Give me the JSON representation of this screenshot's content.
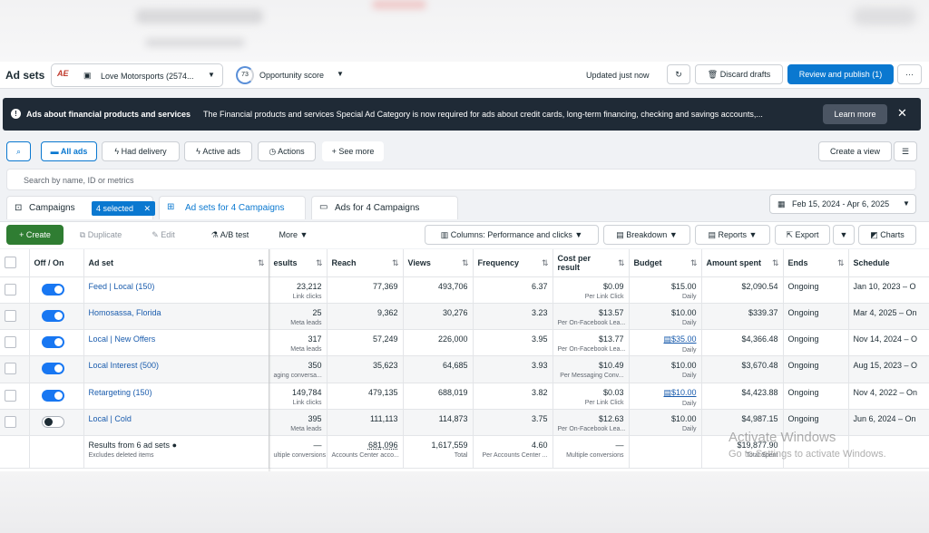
{
  "topbar": {
    "title": "Ad sets",
    "account_name": "Love Motorsports (2574...",
    "account_logo_text": "AE",
    "opportunity_score_value": "73",
    "opportunity_score_label": "Opportunity score",
    "updated_text": "Updated just now",
    "discard_label": "Discard drafts",
    "review_publish_label": "Review and publish (1)",
    "more_label": "···"
  },
  "banner": {
    "title": "Ads about financial products and services",
    "body": "The Financial products and services Special Ad Category is now required for ads about credit cards, long-term financing, checking and savings accounts,...",
    "learn_more": "Learn more"
  },
  "filters": {
    "all_ads": "All ads",
    "had_delivery": "Had delivery",
    "active_ads": "Active ads",
    "actions": "Actions",
    "see_more": "See more",
    "create_view": "Create a view"
  },
  "search": {
    "placeholder": "Search by name, ID or metrics"
  },
  "tabs": {
    "campaigns": "Campaigns",
    "selected_chip": "4 selected",
    "adsets": "Ad sets for 4 Campaigns",
    "ads": "Ads for 4 Campaigns"
  },
  "date_range": "Feb 15, 2024 - Apr 6, 2025",
  "toolbar": {
    "create": "Create",
    "duplicate": "Duplicate",
    "edit": "Edit",
    "ab_test": "A/B test",
    "more": "More",
    "columns": "Columns: Performance and clicks",
    "breakdown": "Breakdown",
    "reports": "Reports",
    "export": "Export",
    "charts": "Charts"
  },
  "table": {
    "headers": {
      "offon": "Off / On",
      "adset": "Ad set",
      "results": "esults",
      "reach": "Reach",
      "views": "Views",
      "frequency": "Frequency",
      "cost_line1": "Cost per",
      "cost_line2": "result",
      "budget": "Budget",
      "amount": "Amount spent",
      "ends": "Ends",
      "schedule": "Schedule"
    },
    "rows": [
      {
        "name": "Feed | Local (150)",
        "results": "23,212",
        "results_sub": "Link clicks",
        "reach": "77,369",
        "views": "493,706",
        "frequency": "6.37",
        "cost": "$0.09",
        "cost_sub": "Per Link Click",
        "budget": "$15.00",
        "budget_sub": "Daily",
        "amount": "$2,090.54",
        "ends": "Ongoing",
        "schedule": "Jan 10, 2023 – O"
      },
      {
        "name": "Homosassa, Florida",
        "results": "25",
        "results_sub": "Meta leads",
        "reach": "9,362",
        "views": "30,276",
        "frequency": "3.23",
        "cost": "$13.57",
        "cost_sub": "Per On-Facebook Lea...",
        "budget": "$10.00",
        "budget_sub": "Daily",
        "amount": "$339.37",
        "ends": "Ongoing",
        "schedule": "Mar 4, 2025 – On"
      },
      {
        "name": "Local | New Offers",
        "results": "317",
        "results_sub": "Meta leads",
        "reach": "57,249",
        "views": "226,000",
        "frequency": "3.95",
        "cost": "$13.77",
        "cost_sub": "Per On-Facebook Lea...",
        "budget": "$35.00",
        "budget_sub": "Daily",
        "amount": "$4,366.48",
        "ends": "Ongoing",
        "schedule": "Nov 14, 2024 – O"
      },
      {
        "name": "Local Interest (500)",
        "results": "350",
        "results_sub": "aging conversa...",
        "reach": "35,623",
        "views": "64,685",
        "frequency": "3.93",
        "cost": "$10.49",
        "cost_sub": "Per Messaging Conv...",
        "budget": "$10.00",
        "budget_sub": "Daily",
        "amount": "$3,670.48",
        "ends": "Ongoing",
        "schedule": "Aug 15, 2023 – O"
      },
      {
        "name": "Retargeting (150)",
        "results": "149,784",
        "results_sub": "Link clicks",
        "reach": "479,135",
        "views": "688,019",
        "frequency": "3.82",
        "cost": "$0.03",
        "cost_sub": "Per Link Click",
        "budget": "$10.00",
        "budget_sub": "Daily",
        "amount": "$4,423.88",
        "ends": "Ongoing",
        "schedule": "Nov 4, 2022 – On"
      },
      {
        "name": "Local | Cold",
        "results": "395",
        "results_sub": "Meta leads",
        "reach": "111,113",
        "views": "114,873",
        "frequency": "3.75",
        "cost": "$12.63",
        "cost_sub": "Per On-Facebook Lea...",
        "budget": "$10.00",
        "budget_sub": "Daily",
        "amount": "$4,987.15",
        "ends": "Ongoing",
        "schedule": "Jun 6, 2024 – On"
      }
    ],
    "totals": {
      "label": "Results from 6 ad sets",
      "label_sub": "Excludes deleted items",
      "results": "—",
      "results_sub": "ultiple conversions",
      "reach": "681,096",
      "reach_sub": "Accounts Center acco...",
      "views": "1,617,559",
      "views_sub": "Total",
      "frequency": "4.60",
      "frequency_sub": "Per Accounts Center ...",
      "cost": "—",
      "cost_sub": "Multiple conversions",
      "amount": "$19,877.90",
      "amount_sub": "Total Spent"
    }
  },
  "watermark": {
    "line1": "Activate Windows",
    "line2": "Go to Settings to activate Windows."
  }
}
